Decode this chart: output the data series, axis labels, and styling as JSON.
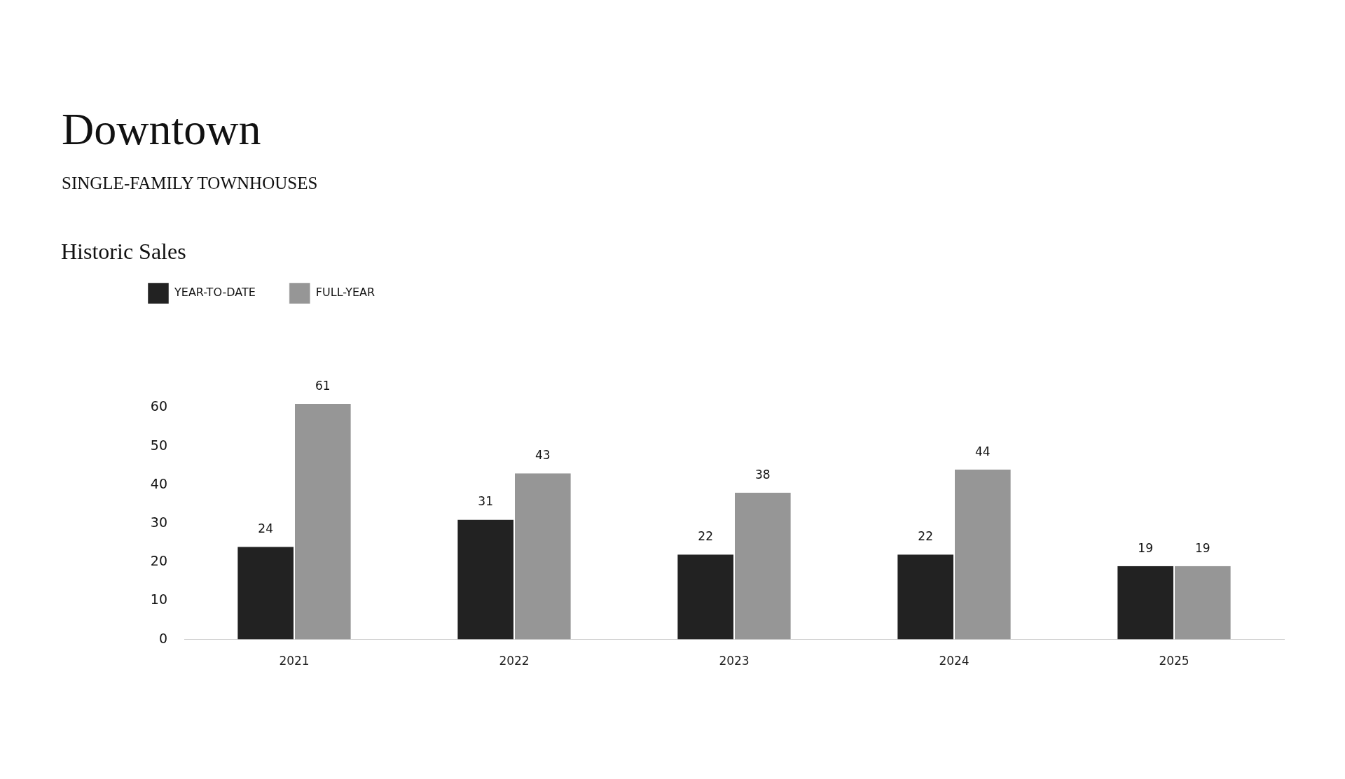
{
  "chart_data": {
    "type": "bar",
    "title": "Downtown",
    "subtitle": "SINGLE-FAMILY TOWNHOUSES",
    "annotations": [
      "Historic Sales"
    ],
    "categories": [
      "2021",
      "2022",
      "2023",
      "2024",
      "2025"
    ],
    "series": [
      {
        "name": "YEAR-TO-DATE",
        "color": "#222222",
        "values": [
          24,
          31,
          22,
          22,
          19
        ]
      },
      {
        "name": "FULL-YEAR",
        "color": "#969696",
        "values": [
          61,
          43,
          38,
          44,
          19
        ]
      }
    ],
    "ylim": [
      0,
      61
    ],
    "yticks": [
      0,
      10,
      20,
      30,
      40,
      50,
      60
    ],
    "data_labels": true,
    "legend": "top left"
  }
}
